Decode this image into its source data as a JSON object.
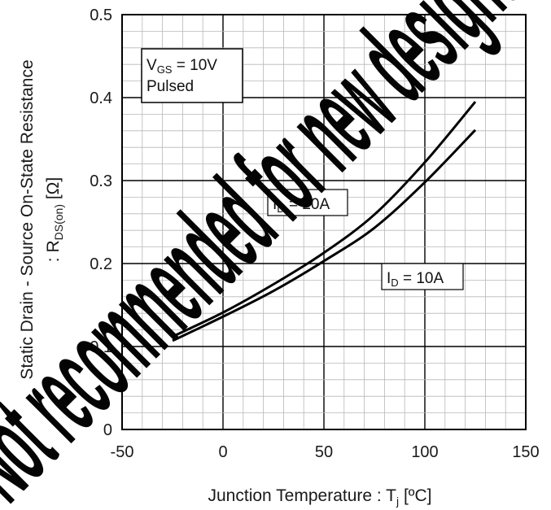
{
  "chart_data": {
    "type": "line",
    "xlabel": {
      "main": "Junction Temperature : T",
      "sub": "j",
      "unit": " [ºC]"
    },
    "ylabel": {
      "line1": "Static Drain - Source On-State Resistance",
      "line2_main": ": R",
      "line2_sub": "DS(on)",
      "line2_unit": " [Ω]"
    },
    "xlim": [
      -50,
      150
    ],
    "ylim": [
      0,
      0.5
    ],
    "xticks": [
      "-50",
      "0",
      "50",
      "100",
      "150"
    ],
    "yticks": [
      "0",
      "0.1",
      "0.2",
      "0.3",
      "0.4",
      "0.5"
    ],
    "grid": true,
    "conditions": {
      "line1_main": "V",
      "line1_sub": "GS",
      "line1_rest": " = 10V",
      "line2": "Pulsed"
    },
    "series": [
      {
        "name": "I_D = 20A",
        "label_main": "I",
        "label_sub": "D",
        "label_rest": " = 20A",
        "x": [
          -25,
          0,
          25,
          50,
          75,
          100,
          125
        ],
        "y": [
          0.112,
          0.141,
          0.175,
          0.213,
          0.259,
          0.322,
          0.395
        ]
      },
      {
        "name": "I_D = 10A",
        "label_main": "I",
        "label_sub": "D",
        "label_rest": " = 10A",
        "x": [
          -25,
          0,
          25,
          50,
          75,
          100,
          125
        ],
        "y": [
          0.107,
          0.136,
          0.167,
          0.203,
          0.243,
          0.298,
          0.361
        ]
      }
    ],
    "watermark": "Not recommended for new designs"
  }
}
